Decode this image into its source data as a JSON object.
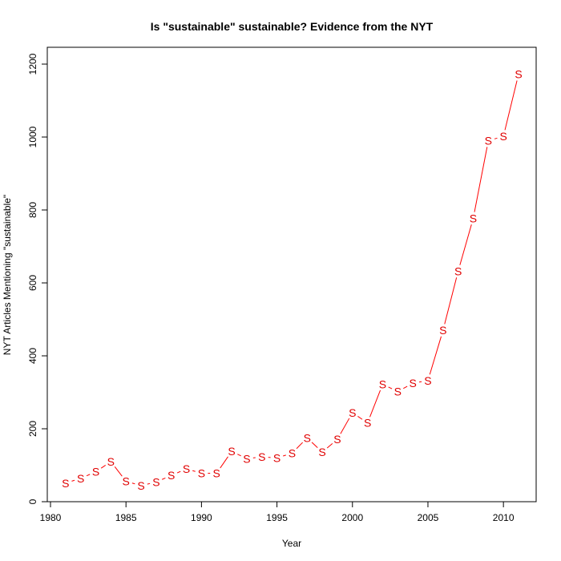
{
  "chart_data": {
    "type": "line",
    "title": "Is \"sustainable\" sustainable? Evidence from the NYT",
    "xlabel": "Year",
    "ylabel": "NYT Articles Mentioning \"sustainable\"",
    "marker": "S",
    "color": "#ff0000",
    "marker_color": "#e00000",
    "grid": false,
    "xlim": [
      1980,
      2011.5
    ],
    "ylim": [
      0,
      1220
    ],
    "x_ticks": [
      1980,
      1985,
      1990,
      1995,
      2000,
      2005,
      2010
    ],
    "y_ticks": [
      0,
      200,
      400,
      600,
      800,
      1000,
      1200
    ],
    "x": [
      1981,
      1982,
      1983,
      1984,
      1985,
      1986,
      1987,
      1988,
      1989,
      1990,
      1991,
      1992,
      1993,
      1994,
      1995,
      1996,
      1997,
      1998,
      1999,
      2000,
      2001,
      2002,
      2003,
      2004,
      2005,
      2006,
      2007,
      2008,
      2009,
      2010,
      2011
    ],
    "values": [
      51,
      64,
      82,
      110,
      56,
      44,
      54,
      72,
      90,
      78,
      78,
      138,
      118,
      123,
      120,
      133,
      175,
      136,
      171,
      244,
      216,
      322,
      302,
      325,
      332,
      470,
      632,
      777,
      990,
      1002,
      1172
    ]
  }
}
